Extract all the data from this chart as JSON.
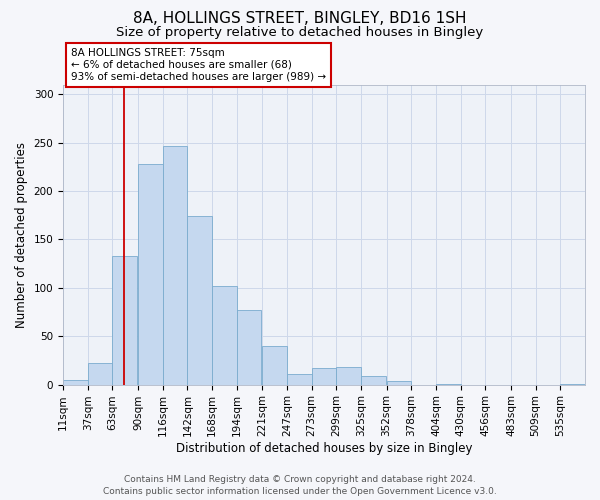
{
  "title1": "8A, HOLLINGS STREET, BINGLEY, BD16 1SH",
  "title2": "Size of property relative to detached houses in Bingley",
  "xlabel": "Distribution of detached houses by size in Bingley",
  "ylabel": "Number of detached properties",
  "bin_labels": [
    "11sqm",
    "37sqm",
    "63sqm",
    "90sqm",
    "116sqm",
    "142sqm",
    "168sqm",
    "194sqm",
    "221sqm",
    "247sqm",
    "273sqm",
    "299sqm",
    "325sqm",
    "352sqm",
    "378sqm",
    "404sqm",
    "430sqm",
    "456sqm",
    "483sqm",
    "509sqm",
    "535sqm"
  ],
  "bar_heights": [
    5,
    22,
    133,
    228,
    246,
    174,
    102,
    77,
    40,
    11,
    17,
    18,
    9,
    4,
    0,
    1,
    0,
    0,
    0,
    0,
    1
  ],
  "bar_color": "#c5d8ef",
  "bar_edge_color": "#7aabce",
  "red_line_x": 75,
  "annotation_title": "8A HOLLINGS STREET: 75sqm",
  "annotation_line1": "← 6% of detached houses are smaller (68)",
  "annotation_line2": "93% of semi-detached houses are larger (989) →",
  "annotation_box_facecolor": "#ffffff",
  "annotation_box_edgecolor": "#cc0000",
  "red_line_color": "#cc0000",
  "ylim": [
    0,
    310
  ],
  "bin_width": 26,
  "footer1": "Contains HM Land Registry data © Crown copyright and database right 2024.",
  "footer2": "Contains public sector information licensed under the Open Government Licence v3.0.",
  "grid_color": "#cdd8ea",
  "bg_color": "#eef2f8",
  "fig_bg_color": "#f5f6fa",
  "title1_fontsize": 11,
  "title2_fontsize": 9.5,
  "axis_label_fontsize": 8.5,
  "tick_fontsize": 7.5,
  "annotation_fontsize": 7.5,
  "footer_fontsize": 6.5
}
